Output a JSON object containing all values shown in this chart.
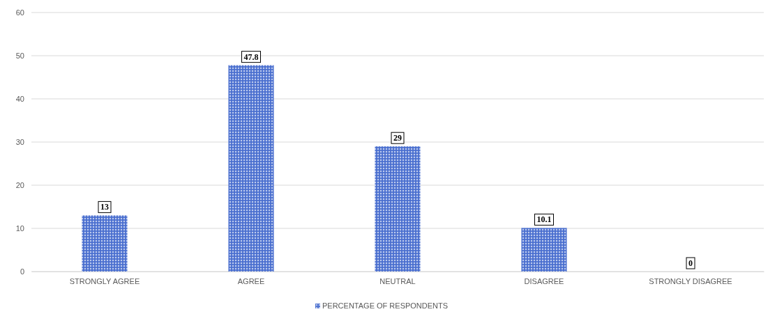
{
  "chart_data": {
    "type": "bar",
    "categories": [
      "STRONGLY AGREE",
      "AGREE",
      "NEUTRAL",
      "DISAGREE",
      "STRONGLY DISAGREE"
    ],
    "series": [
      {
        "name": "PERCENTAGE OF RESPONDENTS",
        "color": "#4a6fcf",
        "values": [
          13,
          47.8,
          29,
          10.1,
          0
        ]
      }
    ],
    "ylim": [
      0,
      60
    ],
    "yticks": [
      0,
      10,
      20,
      30,
      40,
      50,
      60
    ],
    "grid": "y",
    "legend": "bottom",
    "data_labels": true
  }
}
